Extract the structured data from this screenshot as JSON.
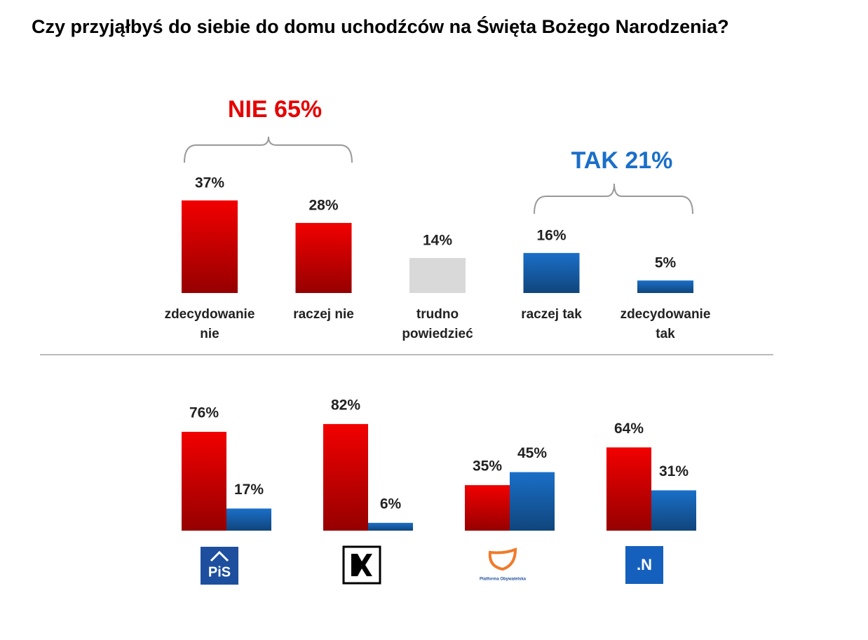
{
  "chart_data": [
    {
      "type": "bar",
      "title": "Czy przyjąłbyś do siebie do domu uchodźców na Święta Bożego Narodzenia?",
      "annotations": [
        "NIE 65%",
        "TAK 21%"
      ],
      "categories": [
        "zdecydowanie nie",
        "raczej nie",
        "trudno powiedzieć",
        "raczej tak",
        "zdecydowanie tak"
      ],
      "values": [
        37,
        28,
        14,
        16,
        5
      ],
      "value_labels": [
        "37%",
        "28%",
        "14%",
        "16%",
        "5%"
      ],
      "colors": [
        "#f20000",
        "#f20000",
        "#d9d9d9",
        "#1a6fc8",
        "#1a6fc8"
      ]
    },
    {
      "type": "grouped_bar",
      "categories": [
        "PiS",
        null,
        "Platforma Obywatelska",
        ".N"
      ],
      "series": [
        {
          "color": "#f20000",
          "values": [
            76,
            82,
            35,
            64
          ],
          "value_labels": [
            "76%",
            "82%",
            "35%",
            "64%"
          ]
        },
        {
          "color": "#1a6fc8",
          "values": [
            17,
            6,
            45,
            31
          ],
          "value_labels": [
            "17%",
            "6%",
            "45%",
            "31%"
          ]
        }
      ]
    }
  ]
}
